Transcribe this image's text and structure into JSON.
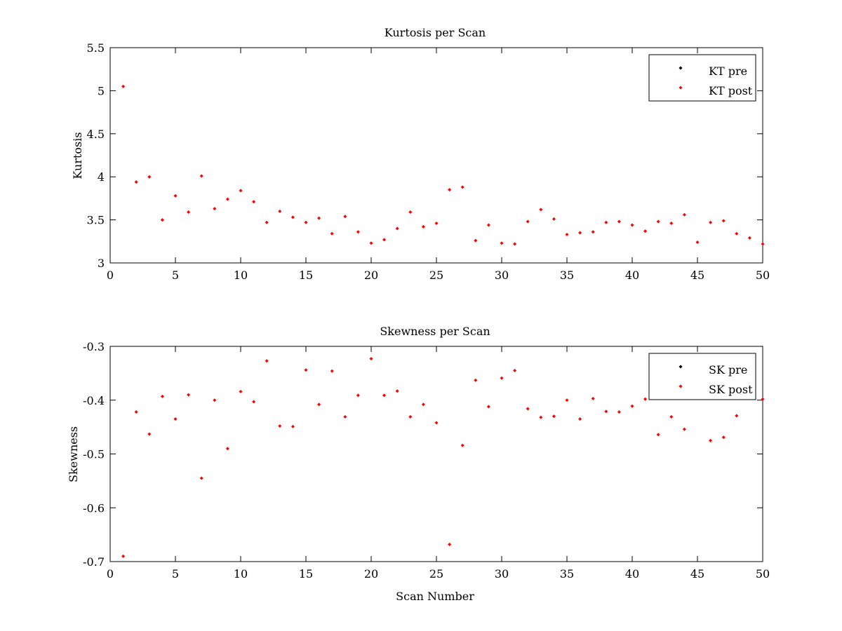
{
  "chart_data": [
    {
      "type": "scatter",
      "title": "Kurtosis per Scan",
      "xlabel": "",
      "ylabel": "Kurtosis",
      "xlim": [
        0,
        50
      ],
      "ylim": [
        3,
        5.5
      ],
      "xticks": [
        "0",
        "5",
        "10",
        "15",
        "20",
        "25",
        "30",
        "35",
        "40",
        "45",
        "50"
      ],
      "yticks": [
        "3",
        "3.5",
        "4",
        "4.5",
        "5",
        "5.5"
      ],
      "legend_position": "top-right",
      "grid": false,
      "series": [
        {
          "name": "KT pre",
          "color": "#000000",
          "x": [],
          "y": []
        },
        {
          "name": "KT post",
          "color": "#ff0000",
          "x": [
            1,
            2,
            3,
            4,
            5,
            6,
            7,
            8,
            9,
            10,
            11,
            12,
            13,
            14,
            15,
            16,
            17,
            18,
            19,
            20,
            21,
            22,
            23,
            24,
            25,
            26,
            27,
            28,
            29,
            30,
            31,
            32,
            33,
            34,
            35,
            36,
            37,
            38,
            39,
            40,
            41,
            42,
            43,
            44,
            45,
            46,
            47,
            48,
            49,
            50
          ],
          "y": [
            5.05,
            3.94,
            4.0,
            3.5,
            3.78,
            3.59,
            4.01,
            3.63,
            3.74,
            3.84,
            3.71,
            3.47,
            3.6,
            3.53,
            3.47,
            3.52,
            3.34,
            3.54,
            3.36,
            3.23,
            3.27,
            3.4,
            3.59,
            3.42,
            3.46,
            3.85,
            3.88,
            3.26,
            3.44,
            3.23,
            3.22,
            3.48,
            3.62,
            3.51,
            3.33,
            3.35,
            3.36,
            3.47,
            3.48,
            3.44,
            3.37,
            3.48,
            3.46,
            3.56,
            3.24,
            3.47,
            3.49,
            3.34,
            3.29,
            3.22
          ]
        }
      ]
    },
    {
      "type": "scatter",
      "title": "Skewness per Scan",
      "xlabel": "Scan Number",
      "ylabel": "Skewness",
      "xlim": [
        0,
        50
      ],
      "ylim": [
        -0.7,
        -0.3
      ],
      "xticks": [
        "0",
        "5",
        "10",
        "15",
        "20",
        "25",
        "30",
        "35",
        "40",
        "45",
        "50"
      ],
      "yticks": [
        "-0.7",
        "-0.6",
        "-0.5",
        "-0.4",
        "-0.3"
      ],
      "legend_position": "top-right",
      "grid": false,
      "series": [
        {
          "name": "SK pre",
          "color": "#000000",
          "x": [],
          "y": []
        },
        {
          "name": "SK post",
          "color": "#ff0000",
          "x": [
            1,
            2,
            3,
            4,
            5,
            6,
            7,
            8,
            9,
            10,
            11,
            12,
            13,
            14,
            15,
            16,
            17,
            18,
            19,
            20,
            21,
            22,
            23,
            24,
            25,
            26,
            27,
            28,
            29,
            30,
            31,
            32,
            33,
            34,
            35,
            36,
            37,
            38,
            39,
            40,
            41,
            42,
            43,
            44,
            45,
            46,
            47,
            48,
            49,
            50
          ],
          "y": [
            -0.69,
            -0.422,
            -0.463,
            -0.393,
            -0.435,
            -0.39,
            -0.545,
            -0.4,
            -0.49,
            -0.384,
            -0.403,
            -0.327,
            -0.448,
            -0.449,
            -0.344,
            -0.408,
            -0.346,
            -0.431,
            -0.391,
            -0.323,
            -0.391,
            -0.383,
            -0.431,
            -0.408,
            -0.442,
            -0.668,
            -0.484,
            -0.363,
            -0.412,
            -0.359,
            -0.345,
            -0.416,
            -0.432,
            -0.43,
            -0.4,
            -0.435,
            -0.397,
            -0.421,
            -0.422,
            -0.411,
            -0.398,
            -0.464,
            -0.431,
            -0.454,
            -0.34,
            -0.475,
            -0.469,
            -0.429,
            -0.33,
            -0.398
          ]
        }
      ]
    }
  ]
}
